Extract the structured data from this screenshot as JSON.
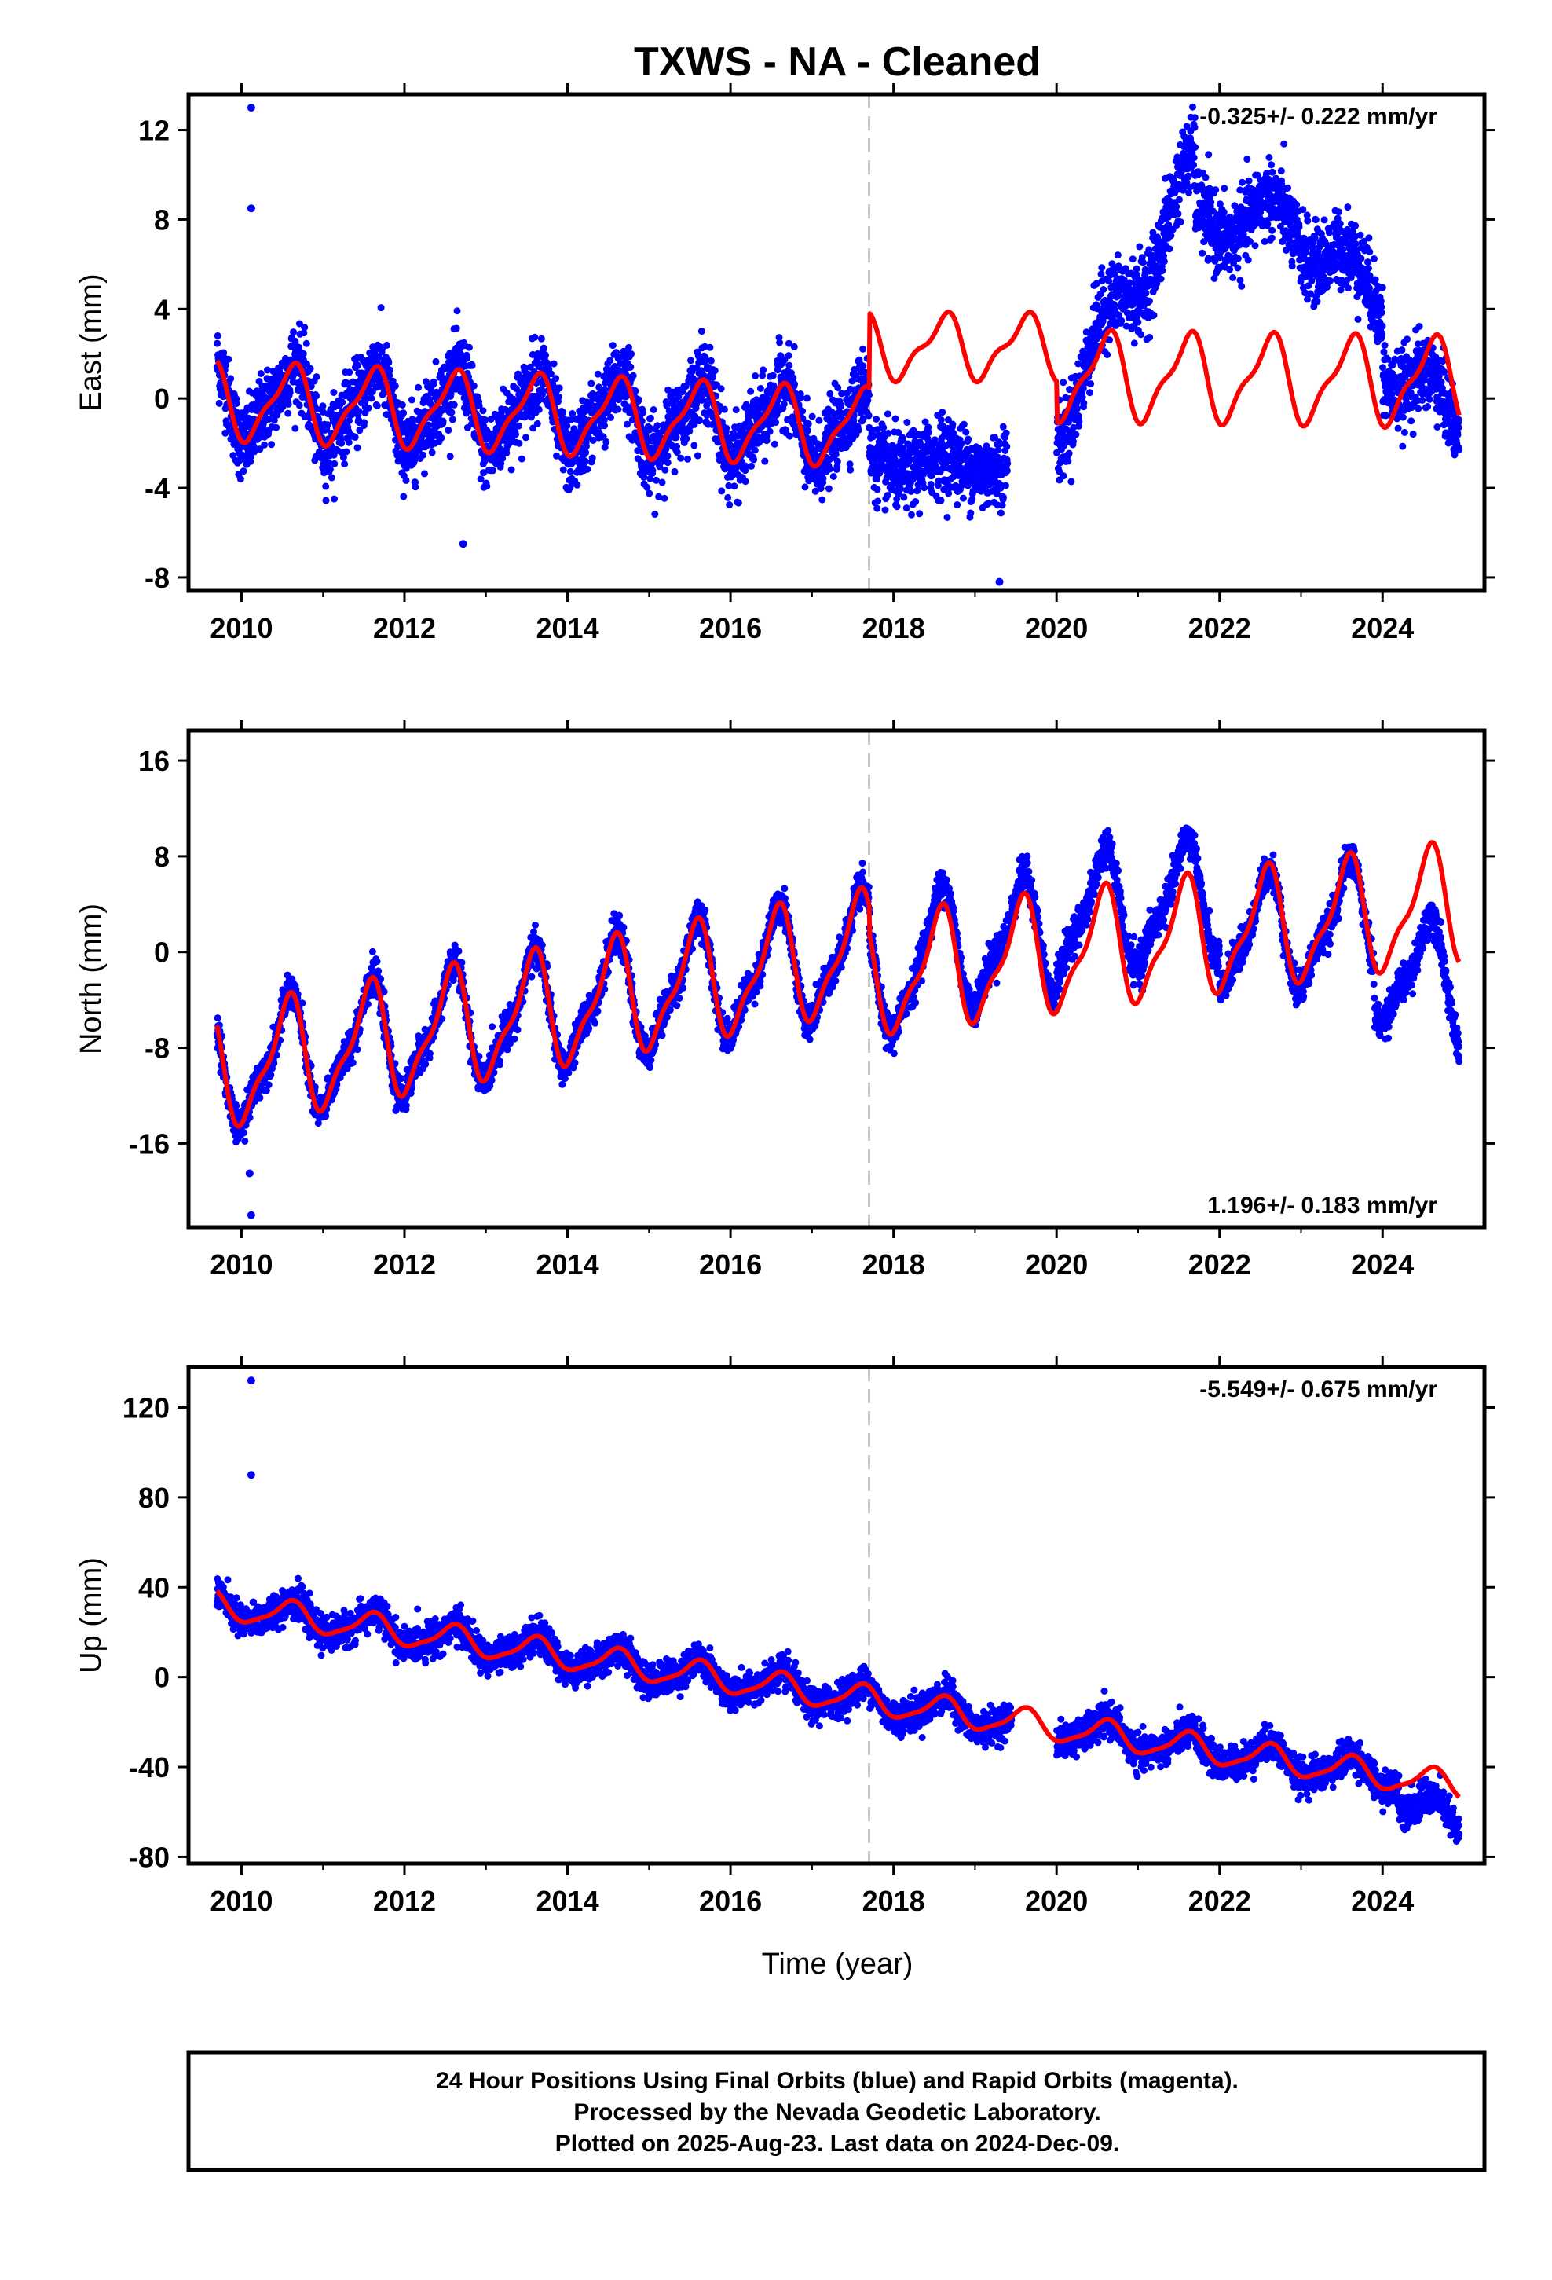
{
  "title": "TXWS  - NA - Cleaned",
  "x_axis_label": "Time (year)",
  "colors": {
    "points": "#0000ff",
    "model": "#ff0000",
    "equipment_change": "#c8c8c8",
    "frame": "#000000"
  },
  "footer": {
    "line1": "24 Hour Positions Using Final Orbits (blue) and Rapid Orbits (magenta).",
    "line2": "Processed by the Nevada Geodetic Laboratory.",
    "line3": "Plotted on 2025-Aug-23. Last data on 2024-Dec-09."
  },
  "chart_data": [
    {
      "type": "scatter",
      "name": "east",
      "ylabel": "East (mm)",
      "rate_text": "-0.325+/- 0.222 mm/yr",
      "rate_position": "top-right",
      "xlim": [
        2009.35,
        2025.25
      ],
      "ylim": [
        -8.6,
        13.6
      ],
      "xticks": [
        "2010",
        "2012",
        "2014",
        "2016",
        "2018",
        "2020",
        "2022",
        "2024"
      ],
      "yticks": [
        "-8",
        "-4",
        "0",
        "4",
        "8",
        "12"
      ],
      "data_span": [
        2009.7,
        2024.94
      ],
      "equipment_change": 2017.7,
      "outliers": [
        [
          2010.12,
          13.0
        ],
        [
          2010.12,
          8.5
        ],
        [
          2012.72,
          -6.5
        ],
        [
          2019.3,
          -8.2
        ]
      ]
    },
    {
      "type": "scatter",
      "name": "north",
      "ylabel": "North (mm)",
      "rate_text": "1.196+/- 0.183 mm/yr",
      "rate_position": "bottom-right",
      "xlim": [
        2009.35,
        2025.25
      ],
      "ylim": [
        -23,
        18.5
      ],
      "xticks": [
        "2010",
        "2012",
        "2014",
        "2016",
        "2018",
        "2020",
        "2022",
        "2024"
      ],
      "yticks": [
        "-16",
        "-8",
        "0",
        "8",
        "16"
      ],
      "data_span": [
        2009.7,
        2024.94
      ],
      "equipment_change": 2017.7,
      "outliers": [
        [
          2010.12,
          -22.0
        ],
        [
          2010.1,
          -18.5
        ],
        [
          2021.05,
          -3.2
        ]
      ]
    },
    {
      "type": "scatter",
      "name": "up",
      "ylabel": "Up (mm)",
      "rate_text": "-5.549+/- 0.675 mm/yr",
      "rate_position": "top-right",
      "xlim": [
        2009.35,
        2025.25
      ],
      "ylim": [
        -83,
        138
      ],
      "xticks": [
        "2010",
        "2012",
        "2014",
        "2016",
        "2018",
        "2020",
        "2022",
        "2024"
      ],
      "yticks": [
        "-80",
        "-40",
        "0",
        "40",
        "80",
        "120"
      ],
      "data_span": [
        2009.7,
        2024.94
      ],
      "equipment_change": 2017.7,
      "outliers": [
        [
          2010.12,
          132.0
        ],
        [
          2010.12,
          90.0
        ]
      ]
    }
  ]
}
